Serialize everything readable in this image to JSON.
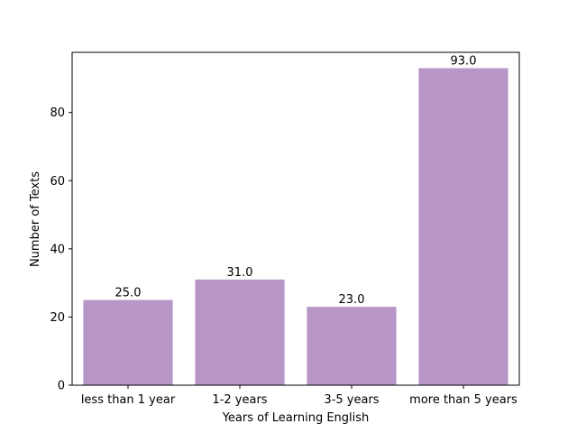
{
  "chart_data": {
    "type": "bar",
    "title": "",
    "xlabel": "Years of Learning English",
    "ylabel": "Number of Texts",
    "categories": [
      "less than 1 year",
      "1-2 years",
      "3-5 years",
      "more than 5 years"
    ],
    "values": [
      25.0,
      31.0,
      23.0,
      93.0
    ],
    "data_labels": [
      "25.0",
      "31.0",
      "23.0",
      "93.0"
    ],
    "ylim": [
      0,
      97.65
    ],
    "yticks": [
      0,
      20,
      40,
      60,
      80
    ],
    "ytick_labels": [
      "0",
      "20",
      "40",
      "60",
      "80"
    ],
    "grid": false,
    "bar_color": "#b996c8"
  }
}
